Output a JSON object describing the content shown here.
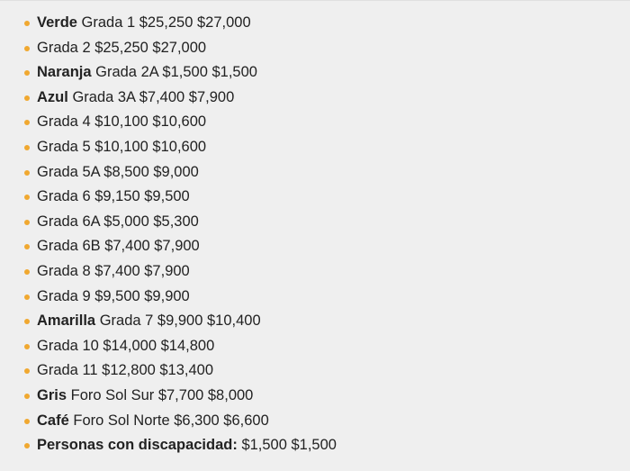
{
  "accent_color": "#f0a830",
  "items": [
    {
      "label": "Verde",
      "text": "Grada 1 $25,250 $27,000"
    },
    {
      "label": "",
      "text": "Grada 2 $25,250 $27,000"
    },
    {
      "label": "Naranja",
      "text": "Grada 2A $1,500 $1,500"
    },
    {
      "label": "Azul",
      "text": "Grada 3A $7,400 $7,900"
    },
    {
      "label": "",
      "text": "Grada 4 $10,100 $10,600"
    },
    {
      "label": "",
      "text": "Grada 5 $10,100 $10,600"
    },
    {
      "label": "",
      "text": "Grada 5A $8,500 $9,000"
    },
    {
      "label": "",
      "text": "Grada 6 $9,150 $9,500"
    },
    {
      "label": "",
      "text": "Grada 6A $5,000 $5,300"
    },
    {
      "label": "",
      "text": "Grada 6B $7,400 $7,900"
    },
    {
      "label": "",
      "text": "Grada 8 $7,400 $7,900"
    },
    {
      "label": "",
      "text": "Grada 9 $9,500 $9,900"
    },
    {
      "label": "Amarilla",
      "text": "Grada 7 $9,900 $10,400"
    },
    {
      "label": "",
      "text": "Grada 10 $14,000 $14,800"
    },
    {
      "label": "",
      "text": "Grada 11 $12,800 $13,400"
    },
    {
      "label": "Gris",
      "text": "Foro Sol Sur $7,700 $8,000"
    },
    {
      "label": "Café",
      "text": "Foro Sol Norte $6,300 $6,600"
    },
    {
      "label": "Personas con discapacidad:",
      "text": "$1,500 $1,500"
    }
  ]
}
